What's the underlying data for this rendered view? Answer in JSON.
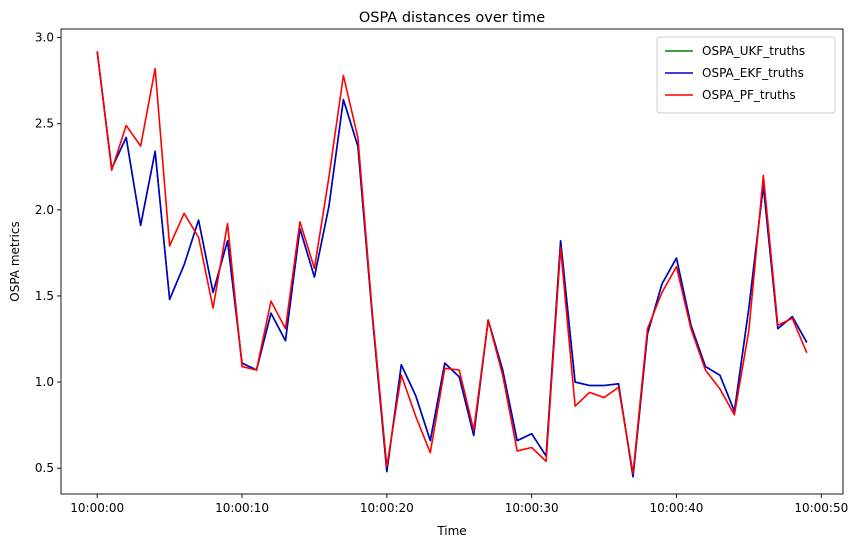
{
  "chart_data": {
    "type": "line",
    "title": "OSPA distances over time",
    "xlabel": "Time",
    "ylabel": "OSPA metrics",
    "x_start_seconds": 0,
    "x_tick_labels": [
      "10:00:00",
      "10:00:10",
      "10:00:20",
      "10:00:30",
      "10:00:40",
      "10:00:50"
    ],
    "x_tick_seconds": [
      0,
      10,
      20,
      30,
      40,
      50
    ],
    "xlim_seconds": [
      -2.5,
      51.5
    ],
    "ylim": [
      0.35,
      3.05
    ],
    "y_ticks": [
      0.5,
      1.0,
      1.5,
      2.0,
      2.5,
      3.0
    ],
    "y_tick_labels": [
      "0.5",
      "1.0",
      "1.5",
      "2.0",
      "2.5",
      "3.0"
    ],
    "legend_position": "top-right",
    "x": [
      0,
      1,
      2,
      3,
      4,
      5,
      6,
      7,
      8,
      9,
      10,
      11,
      12,
      13,
      14,
      15,
      16,
      17,
      18,
      19,
      20,
      21,
      22,
      23,
      24,
      25,
      26,
      27,
      28,
      29,
      30,
      31,
      32,
      33,
      34,
      35,
      36,
      37,
      38,
      39,
      40,
      41,
      42,
      43,
      44,
      45,
      46,
      47,
      48,
      49
    ],
    "series": [
      {
        "name": "OSPA_UKF_truths",
        "color": "#008000",
        "values": [
          2.92,
          2.24,
          2.42,
          1.91,
          2.34,
          1.48,
          1.68,
          1.94,
          1.52,
          1.82,
          1.11,
          1.07,
          1.4,
          1.24,
          1.89,
          1.61,
          2.02,
          2.64,
          2.37,
          1.38,
          0.48,
          1.1,
          0.92,
          0.66,
          1.11,
          1.03,
          0.69,
          1.36,
          1.07,
          0.66,
          0.7,
          0.57,
          1.82,
          1.0,
          0.98,
          0.98,
          0.99,
          0.45,
          1.28,
          1.57,
          1.72,
          1.33,
          1.09,
          1.04,
          0.83,
          1.43,
          2.14,
          1.31,
          1.38,
          1.23
        ]
      },
      {
        "name": "OSPA_EKF_truths",
        "color": "#0000cc",
        "values": [
          2.92,
          2.24,
          2.42,
          1.91,
          2.34,
          1.48,
          1.68,
          1.94,
          1.52,
          1.82,
          1.11,
          1.07,
          1.4,
          1.24,
          1.89,
          1.61,
          2.02,
          2.64,
          2.37,
          1.38,
          0.48,
          1.1,
          0.92,
          0.66,
          1.11,
          1.03,
          0.69,
          1.36,
          1.07,
          0.66,
          0.7,
          0.57,
          1.82,
          1.0,
          0.98,
          0.98,
          0.99,
          0.45,
          1.28,
          1.57,
          1.72,
          1.33,
          1.09,
          1.04,
          0.83,
          1.43,
          2.14,
          1.31,
          1.38,
          1.23
        ]
      },
      {
        "name": "OSPA_PF_truths",
        "color": "#ff0000",
        "values": [
          2.92,
          2.23,
          2.49,
          2.37,
          2.82,
          1.79,
          1.98,
          1.84,
          1.43,
          1.92,
          1.09,
          1.07,
          1.47,
          1.31,
          1.93,
          1.66,
          2.19,
          2.78,
          2.42,
          1.4,
          0.51,
          1.04,
          0.8,
          0.59,
          1.08,
          1.07,
          0.72,
          1.36,
          1.04,
          0.6,
          0.62,
          0.54,
          1.78,
          0.86,
          0.94,
          0.91,
          0.97,
          0.47,
          1.31,
          1.52,
          1.67,
          1.31,
          1.07,
          0.96,
          0.81,
          1.3,
          2.2,
          1.33,
          1.37,
          1.17
        ]
      }
    ]
  }
}
